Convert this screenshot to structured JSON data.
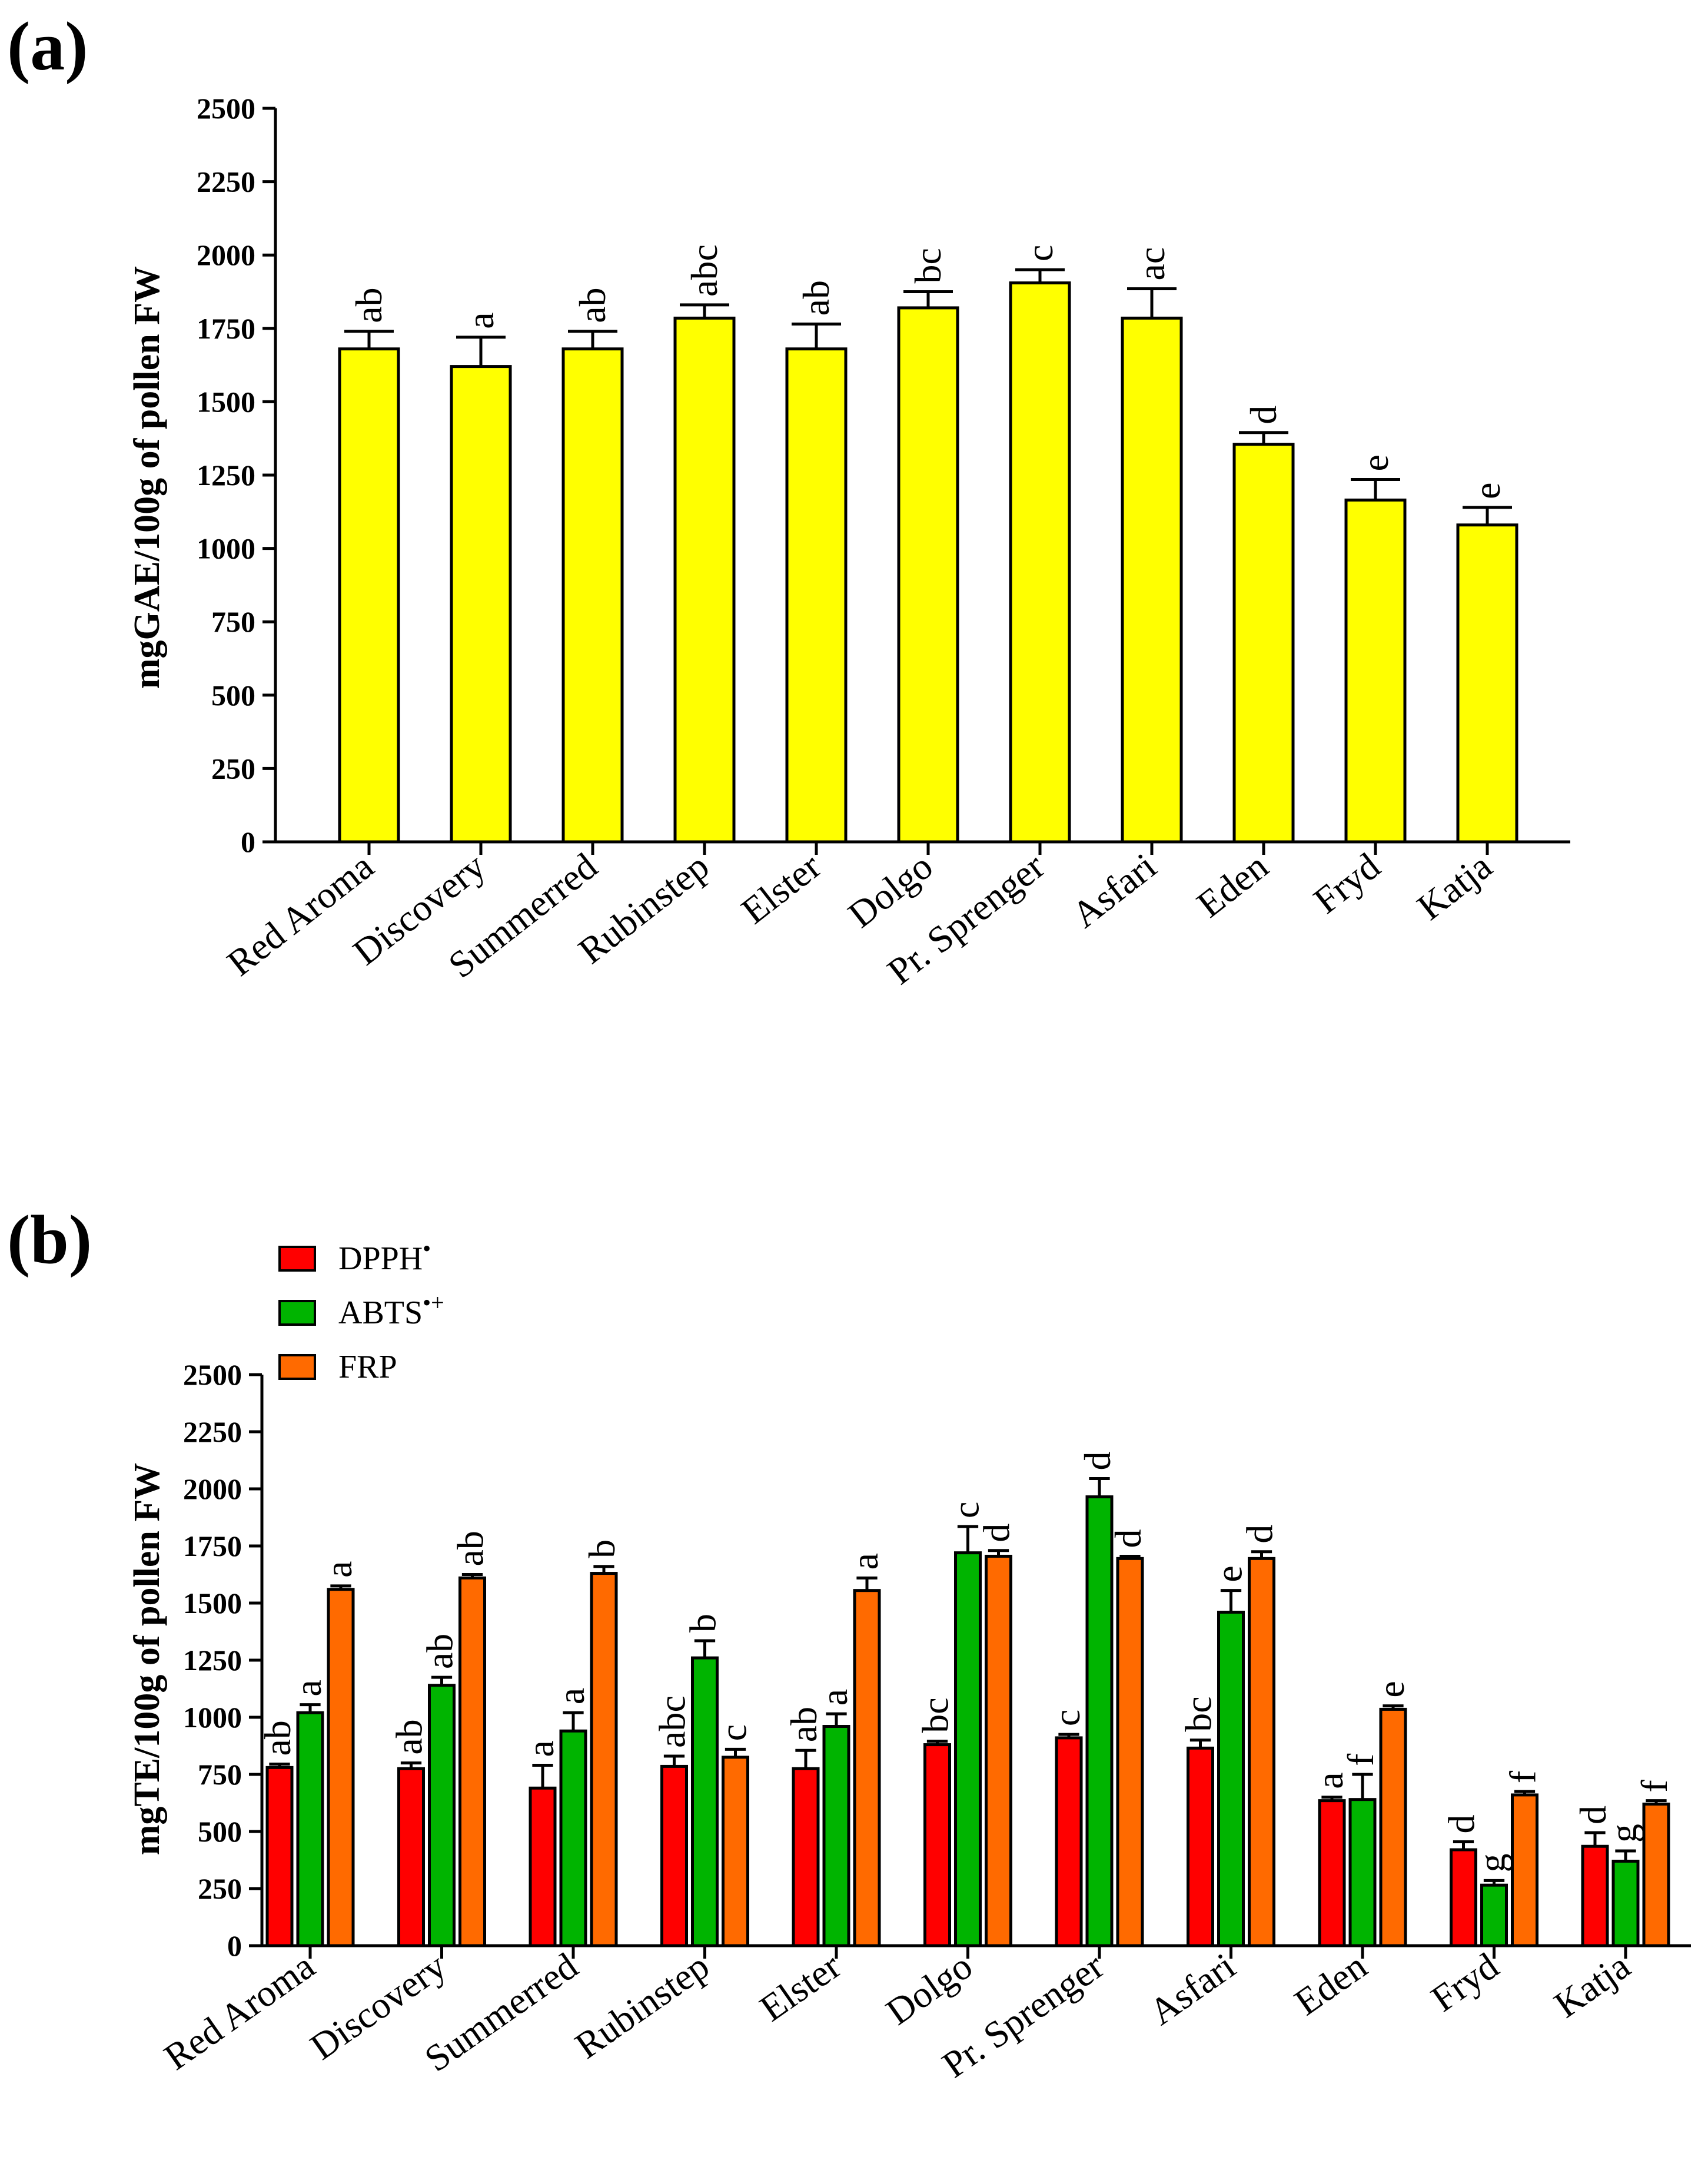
{
  "chart_data": [
    {
      "panel": "(a)",
      "type": "bar",
      "ylabel": "mgGAE/100g of pollen FW",
      "ylim": [
        0,
        2500
      ],
      "yticks": [
        0,
        250,
        500,
        750,
        1000,
        1250,
        1500,
        1750,
        2000,
        2250,
        2500
      ],
      "categories": [
        "Red Aroma",
        "Discovery",
        "Summerred",
        "Rubinstep",
        "Elster",
        "Dolgo",
        "Pr. Sprenger",
        "Asfari",
        "Eden",
        "Fryd",
        "Katja"
      ],
      "series": [
        {
          "color": "#ffff00",
          "values": [
            1680,
            1620,
            1680,
            1785,
            1680,
            1820,
            1905,
            1785,
            1355,
            1165,
            1080
          ],
          "errors": [
            60,
            100,
            60,
            45,
            85,
            55,
            45,
            100,
            40,
            70,
            60
          ],
          "letters": [
            "ab",
            "a",
            "ab",
            "abc",
            "ab",
            "bc",
            "c",
            "ac",
            "d",
            "e",
            "e"
          ]
        }
      ],
      "grid": false
    },
    {
      "panel": "(b)",
      "type": "bar",
      "ylabel": "mgTE/100g of pollen FW",
      "ylim": [
        0,
        2500
      ],
      "yticks": [
        0,
        250,
        500,
        750,
        1000,
        1250,
        1500,
        1750,
        2000,
        2250,
        2500
      ],
      "categories": [
        "Red Aroma",
        "Discovery",
        "Summerred",
        "Rubinstep",
        "Elster",
        "Dolgo",
        "Pr. Sprenger",
        "Asfari",
        "Eden",
        "Fryd",
        "Katja"
      ],
      "legend_position": "top-left",
      "series": [
        {
          "name": "DPPH",
          "name_sup": "•",
          "color": "#ff0000",
          "values": [
            780,
            775,
            690,
            785,
            775,
            880,
            910,
            865,
            635,
            420,
            435
          ],
          "errors": [
            15,
            25,
            100,
            45,
            80,
            15,
            15,
            35,
            15,
            35,
            60
          ],
          "letters": [
            "ab",
            "ab",
            "a",
            "abc",
            "ab",
            "bc",
            "c",
            "bc",
            "a",
            "d",
            "d"
          ]
        },
        {
          "name": "ABTS",
          "name_sup": "•+",
          "color": "#00b400",
          "values": [
            1020,
            1140,
            940,
            1260,
            960,
            1720,
            1965,
            1460,
            640,
            265,
            370
          ],
          "errors": [
            35,
            35,
            80,
            75,
            55,
            115,
            80,
            95,
            110,
            20,
            45
          ],
          "letters": [
            "a",
            "ab",
            "a",
            "b",
            "a",
            "c",
            "d",
            "e",
            "f",
            "g",
            "g"
          ]
        },
        {
          "name": "FRP",
          "name_sup": "",
          "color": "#ff6a00",
          "values": [
            1560,
            1610,
            1630,
            825,
            1555,
            1705,
            1695,
            1695,
            1035,
            660,
            620
          ],
          "errors": [
            15,
            15,
            30,
            35,
            55,
            25,
            10,
            30,
            15,
            15,
            15
          ],
          "letters": [
            "a",
            "ab",
            "b",
            "c",
            "a",
            "d",
            "d",
            "d",
            "e",
            "f",
            "f"
          ]
        }
      ],
      "grid": false
    }
  ]
}
